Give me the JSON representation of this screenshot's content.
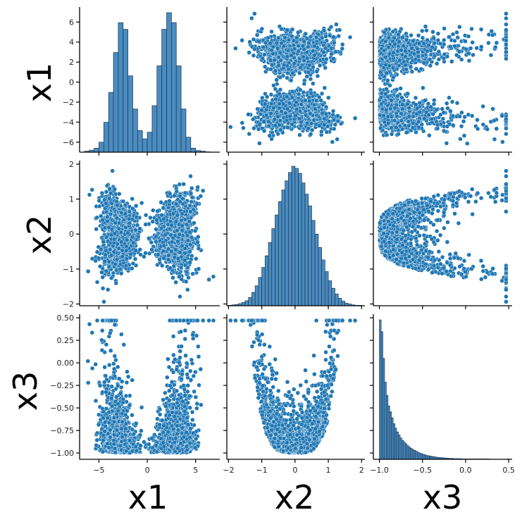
{
  "chart_data": {
    "type": "pairplot",
    "variables": [
      "x1",
      "x2",
      "x3"
    ],
    "color": "#1f77b4",
    "bar_color": "#4a8cc0",
    "axes": {
      "x1": {
        "range": [
          -7,
          7.5
        ],
        "ticks": [
          -6,
          -4,
          -2,
          0,
          2,
          4,
          6
        ],
        "xticks": [
          -5,
          0,
          5
        ]
      },
      "x2": {
        "range": [
          -2.05,
          2.1
        ],
        "ticks": [
          -2,
          -1,
          0,
          1,
          2
        ],
        "xticks": [
          -2,
          -1,
          0,
          1,
          2
        ]
      },
      "x3": {
        "range": [
          -1.07,
          0.54
        ],
        "ticks": [
          -1.0,
          -0.75,
          -0.5,
          -0.25,
          0.0,
          0.25,
          0.5
        ],
        "tick_labels": [
          "−1.00",
          "−0.75",
          "−0.50",
          "−0.25",
          "0.00",
          "0.25",
          "0.50"
        ],
        "xticks": [
          -1.0,
          -0.5,
          0.0,
          0.5
        ],
        "xtick_labels": [
          "−1.0",
          "−0.5",
          "0.0",
          "0.5"
        ]
      }
    },
    "histograms": {
      "x1": {
        "bin_edges": [
          -6.5,
          -6.0,
          -5.5,
          -5.0,
          -4.5,
          -4.0,
          -3.5,
          -3.0,
          -2.5,
          -2.0,
          -1.5,
          -1.0,
          -0.5,
          0.0,
          0.5,
          1.0,
          1.5,
          2.0,
          2.5,
          3.0,
          3.5,
          4.0,
          4.5,
          5.0,
          5.5,
          6.0,
          6.5,
          7.0
        ],
        "counts": [
          3,
          6,
          12,
          30,
          90,
          180,
          300,
          390,
          370,
          230,
          130,
          65,
          40,
          60,
          140,
          260,
          370,
          420,
          390,
          260,
          130,
          45,
          12,
          5,
          3,
          1,
          0
        ]
      },
      "x2": {
        "bin_edges": [
          -2.0,
          -1.9,
          -1.8,
          -1.7,
          -1.6,
          -1.5,
          -1.4,
          -1.3,
          -1.2,
          -1.1,
          -1.0,
          -0.9,
          -0.8,
          -0.7,
          -0.6,
          -0.5,
          -0.4,
          -0.3,
          -0.2,
          -0.1,
          0.0,
          0.1,
          0.2,
          0.3,
          0.4,
          0.5,
          0.6,
          0.7,
          0.8,
          0.9,
          1.0,
          1.1,
          1.2,
          1.3,
          1.4,
          1.5,
          1.6,
          1.7,
          1.8,
          1.9,
          2.0
        ],
        "counts": [
          1,
          2,
          3,
          5,
          8,
          12,
          20,
          32,
          48,
          68,
          92,
          120,
          152,
          185,
          218,
          250,
          278,
          300,
          320,
          335,
          330,
          318,
          295,
          268,
          240,
          205,
          172,
          140,
          110,
          82,
          60,
          42,
          28,
          18,
          11,
          6,
          4,
          2,
          1,
          1
        ]
      },
      "x3": {
        "bin_edges": [
          -1.0,
          -0.98,
          -0.96,
          -0.94,
          -0.92,
          -0.9,
          -0.88,
          -0.86,
          -0.84,
          -0.82,
          -0.8,
          -0.78,
          -0.76,
          -0.74,
          -0.72,
          -0.7,
          -0.68,
          -0.66,
          -0.64,
          -0.62,
          -0.6,
          -0.58,
          -0.56,
          -0.54,
          -0.52,
          -0.5,
          -0.48,
          -0.46,
          -0.44,
          -0.42,
          -0.4,
          -0.38,
          -0.36,
          -0.34,
          -0.32,
          -0.3,
          -0.28,
          -0.26,
          -0.24,
          -0.22,
          -0.2,
          -0.18,
          -0.16,
          -0.14,
          -0.12,
          -0.1,
          -0.08,
          -0.06,
          -0.04,
          -0.02,
          0.0,
          0.02,
          0.04,
          0.06,
          0.08,
          0.1,
          0.12,
          0.14,
          0.16,
          0.18,
          0.2,
          0.22,
          0.24,
          0.26,
          0.28,
          0.3,
          0.32,
          0.34,
          0.36,
          0.38,
          0.4,
          0.42,
          0.44,
          0.46,
          0.48,
          0.5
        ],
        "counts": [
          470,
          430,
          340,
          260,
          215,
          180,
          160,
          140,
          120,
          105,
          92,
          82,
          72,
          64,
          58,
          52,
          46,
          41,
          37,
          33,
          30,
          27,
          24,
          21,
          19,
          17,
          15,
          13,
          12,
          11,
          10,
          9,
          8,
          7,
          6,
          6,
          5,
          5,
          4,
          4,
          3,
          3,
          3,
          2,
          2,
          2,
          2,
          2,
          1,
          1,
          1,
          1,
          1,
          1,
          1,
          1,
          1,
          1,
          1,
          1,
          1,
          1,
          1,
          1,
          0,
          0,
          0,
          0,
          0,
          0,
          0,
          0,
          0,
          0,
          1
        ]
      }
    }
  }
}
